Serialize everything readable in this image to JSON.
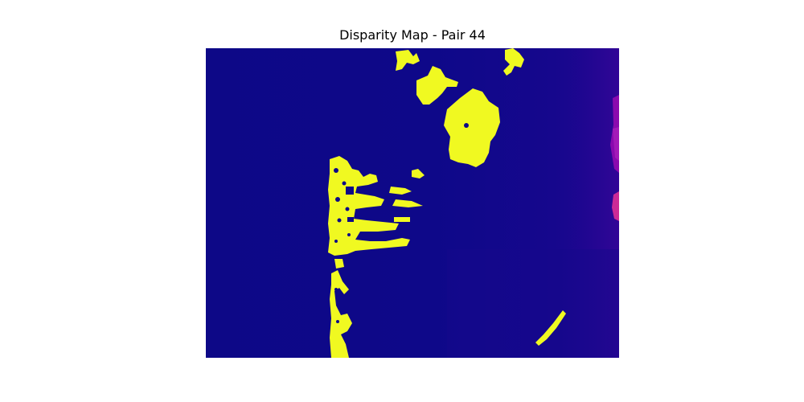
{
  "figure": {
    "title": "Disparity Map - Pair 44"
  },
  "colors": {
    "background_low": "#0d0887",
    "background_mid": "#2a0593",
    "mid_magenta": "#9a10c6",
    "highlight_pink": "#cc2a96",
    "high_yellow": "#f0f921"
  }
}
